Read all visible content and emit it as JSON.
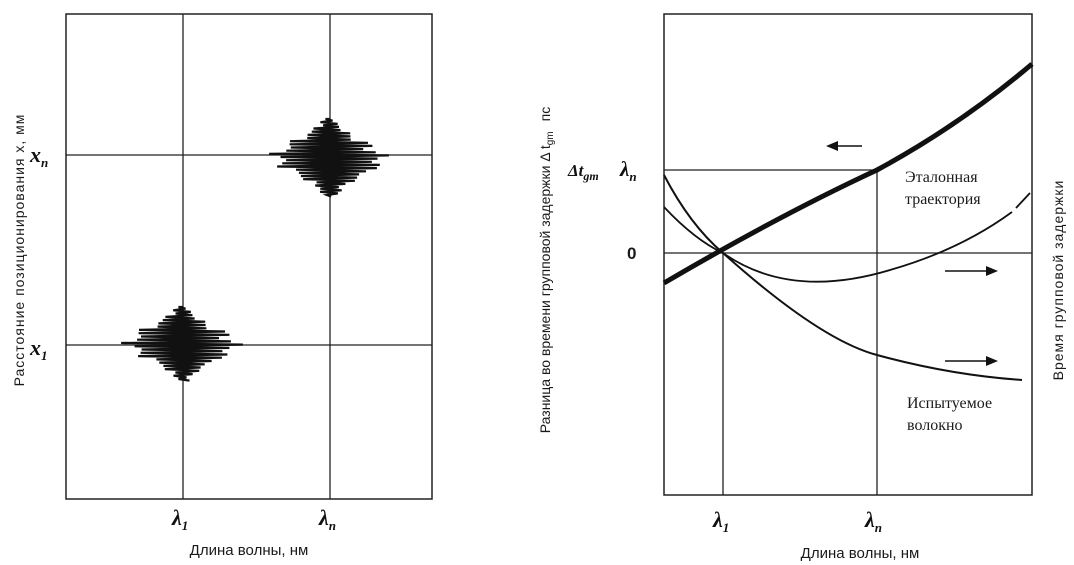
{
  "left_panel": {
    "y_axis_label": "Расстояние позиционирования x, мм",
    "x_axis_label": "Длина волны, нм",
    "x_ticks": [
      {
        "base": "λ",
        "sub": "1"
      },
      {
        "base": "λ",
        "sub": "n"
      }
    ],
    "y_ticks": [
      {
        "base": "x",
        "sub": "n"
      },
      {
        "base": "x",
        "sub": "1"
      }
    ]
  },
  "right_panel": {
    "y_axis_label_left": "Разница во времени групповой задержки Δ t",
    "y_axis_label_left_sub": "gm",
    "y_axis_label_left_unit": "пс",
    "y_axis_label_right": "Время групповой задержки",
    "x_axis_label": "Длина волны, нм",
    "x_ticks": [
      {
        "base": "λ",
        "sub": "1"
      },
      {
        "base": "λ",
        "sub": "n"
      }
    ],
    "y_symbol": {
      "base": "Δt",
      "sub": "gm"
    },
    "y_lambda": {
      "base": "λ",
      "sub": "n"
    },
    "zero_label": "0",
    "reference_label_line1": "Эталонная",
    "reference_label_line2": "траектория",
    "test_label_line1": "Испытуемое",
    "test_label_line2": "волокно"
  }
}
